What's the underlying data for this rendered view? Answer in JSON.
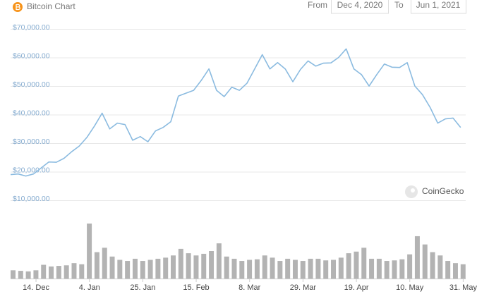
{
  "header": {
    "title": "Bitcoin Chart",
    "from_label": "From",
    "from_date": "Dec 4, 2020",
    "to_label": "To",
    "to_date": "Jun 1, 2021"
  },
  "watermark": "CoinGecko",
  "chart_data": [
    {
      "type": "line",
      "color": "#8bbbe0",
      "grid": true,
      "xlim": [
        "2020-12-04",
        "2021-06-01"
      ],
      "x": [
        "2020-12-04",
        "2020-12-07",
        "2020-12-10",
        "2020-12-13",
        "2020-12-16",
        "2020-12-19",
        "2020-12-22",
        "2020-12-25",
        "2020-12-28",
        "2020-12-31",
        "2021-01-03",
        "2021-01-06",
        "2021-01-09",
        "2021-01-12",
        "2021-01-15",
        "2021-01-18",
        "2021-01-21",
        "2021-01-24",
        "2021-01-27",
        "2021-01-30",
        "2021-02-02",
        "2021-02-05",
        "2021-02-08",
        "2021-02-11",
        "2021-02-14",
        "2021-02-17",
        "2021-02-20",
        "2021-02-23",
        "2021-02-26",
        "2021-03-01",
        "2021-03-04",
        "2021-03-07",
        "2021-03-10",
        "2021-03-13",
        "2021-03-16",
        "2021-03-19",
        "2021-03-22",
        "2021-03-25",
        "2021-03-28",
        "2021-03-31",
        "2021-04-03",
        "2021-04-06",
        "2021-04-09",
        "2021-04-12",
        "2021-04-15",
        "2021-04-18",
        "2021-04-21",
        "2021-04-24",
        "2021-04-27",
        "2021-04-30",
        "2021-05-03",
        "2021-05-06",
        "2021-05-09",
        "2021-05-12",
        "2021-05-15",
        "2021-05-18",
        "2021-05-21",
        "2021-05-24",
        "2021-05-27",
        "2021-05-30"
      ],
      "values": [
        19000,
        19200,
        18500,
        19200,
        21300,
        23400,
        23300,
        24700,
        27000,
        29000,
        32000,
        36000,
        40500,
        35000,
        37000,
        36500,
        31000,
        32300,
        30500,
        34300,
        35500,
        37500,
        46500,
        47500,
        48500,
        52000,
        56000,
        48500,
        46300,
        49600,
        48500,
        51000,
        56000,
        61000,
        56000,
        58200,
        56000,
        51500,
        55800,
        58800,
        57000,
        58000,
        58100,
        60000,
        63000,
        56000,
        54000,
        50000,
        54000,
        57700,
        56600,
        56500,
        58200,
        50000,
        47000,
        42500,
        37000,
        38500,
        38800,
        35500
      ],
      "ylim": [
        10000,
        70000
      ],
      "yticks": [
        {
          "value": 10000,
          "label": "$10,000.00"
        },
        {
          "value": 20000,
          "label": "$20,000.00"
        },
        {
          "value": 30000,
          "label": "$30,000.00"
        },
        {
          "value": 40000,
          "label": "$40,000.00"
        },
        {
          "value": 50000,
          "label": "$50,000.00"
        },
        {
          "value": 60000,
          "label": "$60,000.00"
        },
        {
          "value": 70000,
          "label": "$70,000.00"
        }
      ]
    },
    {
      "type": "bar",
      "color": "#b3b3b3",
      "xlim": [
        "2020-12-04",
        "2021-06-01"
      ],
      "x": [
        "2020-12-04",
        "2020-12-07",
        "2020-12-10",
        "2020-12-13",
        "2020-12-16",
        "2020-12-19",
        "2020-12-22",
        "2020-12-25",
        "2020-12-28",
        "2020-12-31",
        "2021-01-03",
        "2021-01-06",
        "2021-01-09",
        "2021-01-12",
        "2021-01-15",
        "2021-01-18",
        "2021-01-21",
        "2021-01-24",
        "2021-01-27",
        "2021-01-30",
        "2021-02-02",
        "2021-02-05",
        "2021-02-08",
        "2021-02-11",
        "2021-02-14",
        "2021-02-17",
        "2021-02-20",
        "2021-02-23",
        "2021-02-26",
        "2021-03-01",
        "2021-03-04",
        "2021-03-07",
        "2021-03-10",
        "2021-03-13",
        "2021-03-16",
        "2021-03-19",
        "2021-03-22",
        "2021-03-25",
        "2021-03-28",
        "2021-03-31",
        "2021-04-03",
        "2021-04-06",
        "2021-04-09",
        "2021-04-12",
        "2021-04-15",
        "2021-04-18",
        "2021-04-21",
        "2021-04-24",
        "2021-04-27",
        "2021-04-30",
        "2021-05-03",
        "2021-05-06",
        "2021-05-09",
        "2021-05-12",
        "2021-05-15",
        "2021-05-18",
        "2021-05-21",
        "2021-05-24",
        "2021-05-27",
        "2021-05-30"
      ],
      "values": [
        1.5,
        1.4,
        1.3,
        1.5,
        2.5,
        2.2,
        2.3,
        2.4,
        2.8,
        2.6,
        10,
        4.8,
        5.6,
        4,
        3.4,
        3.2,
        3.6,
        3.2,
        3.4,
        3.6,
        3.8,
        4.2,
        5.4,
        4.6,
        4.2,
        4.5,
        5,
        6.4,
        4,
        3.6,
        3.2,
        3.4,
        3.5,
        4.2,
        3.8,
        3.2,
        3.6,
        3.4,
        3.2,
        3.6,
        3.6,
        3.3,
        3.4,
        3.8,
        4.6,
        4.9,
        5.6,
        3.6,
        3.6,
        3.2,
        3.3,
        3.5,
        4.4,
        7.7,
        6.2,
        4.8,
        4.2,
        3.2,
        2.8,
        2.6
      ],
      "xticks": [
        {
          "value": "2020-12-14",
          "label": "14. Dec"
        },
        {
          "value": "2021-01-04",
          "label": "4. Jan"
        },
        {
          "value": "2021-01-25",
          "label": "25. Jan"
        },
        {
          "value": "2021-02-15",
          "label": "15. Feb"
        },
        {
          "value": "2021-03-08",
          "label": "8. Mar"
        },
        {
          "value": "2021-03-29",
          "label": "29. Mar"
        },
        {
          "value": "2021-04-19",
          "label": "19. Apr"
        },
        {
          "value": "2021-05-10",
          "label": "10. May"
        },
        {
          "value": "2021-05-31",
          "label": "31. May"
        }
      ]
    }
  ]
}
